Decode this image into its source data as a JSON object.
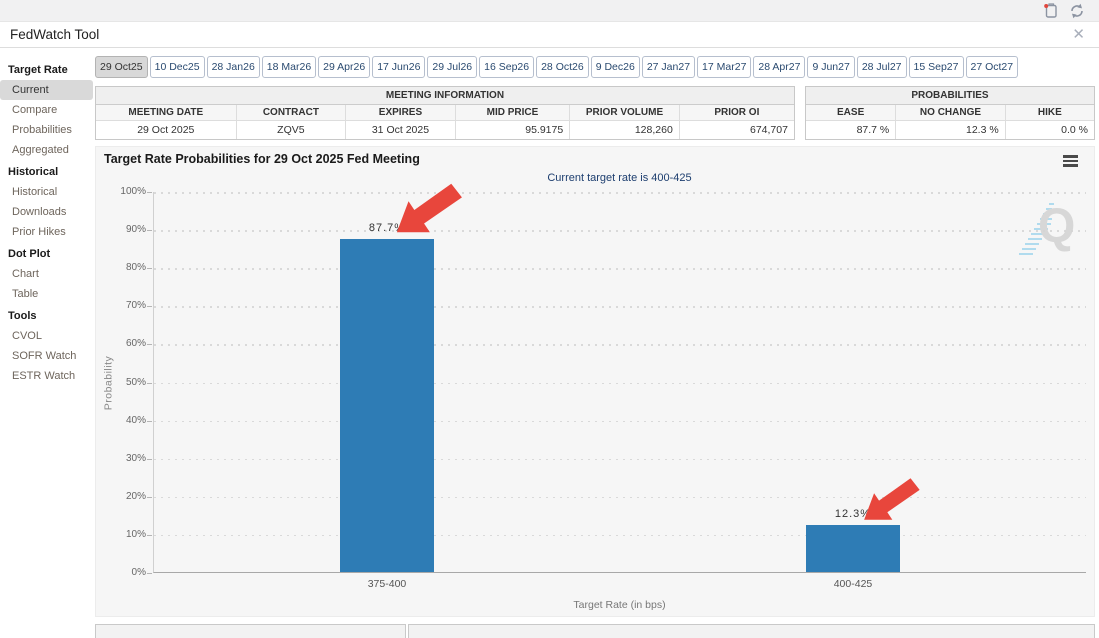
{
  "window": {
    "title": "FedWatch Tool"
  },
  "toolbar": {
    "icons": [
      "export-icon",
      "refresh-icon"
    ]
  },
  "tabs": {
    "selected": "29 Oct25",
    "items": [
      "29 Oct25",
      "10 Dec25",
      "28 Jan26",
      "18 Mar26",
      "29 Apr26",
      "17 Jun26",
      "29 Jul26",
      "16 Sep26",
      "28 Oct26",
      "9 Dec26",
      "27 Jan27",
      "17 Mar27",
      "28 Apr27",
      "9 Jun27",
      "28 Jul27",
      "15 Sep27",
      "27 Oct27"
    ]
  },
  "sidebar": {
    "selected": "Current",
    "groups": [
      {
        "title": "Target Rate",
        "items": [
          "Current",
          "Compare",
          "Probabilities",
          "Aggregated"
        ]
      },
      {
        "title": "Historical",
        "items": [
          "Historical",
          "Downloads",
          "Prior Hikes"
        ]
      },
      {
        "title": "Dot Plot",
        "items": [
          "Chart",
          "Table"
        ]
      },
      {
        "title": "Tools",
        "items": [
          "CVOL",
          "SOFR Watch",
          "ESTR Watch"
        ]
      }
    ]
  },
  "meeting_information": {
    "title": "MEETING INFORMATION",
    "columns": [
      "MEETING DATE",
      "CONTRACT",
      "EXPIRES",
      "MID PRICE",
      "PRIOR VOLUME",
      "PRIOR OI"
    ],
    "values": [
      "29 Oct 2025",
      "ZQV5",
      "31 Oct 2025",
      "95.9175",
      "128,260",
      "674,707"
    ]
  },
  "probabilities": {
    "title": "PROBABILITIES",
    "columns": [
      "EASE",
      "NO CHANGE",
      "HIKE"
    ],
    "values": [
      "87.7 %",
      "12.3 %",
      "0.0 %"
    ]
  },
  "chart_data": {
    "type": "bar",
    "title": "Target Rate Probabilities for 29 Oct 2025 Fed Meeting",
    "subtitle": "Current target rate is 400-425",
    "categories": [
      "375-400",
      "400-425"
    ],
    "values": [
      87.7,
      12.3
    ],
    "value_labels": [
      "87.7%",
      "12.3%"
    ],
    "xlabel": "Target Rate (in bps)",
    "ylabel": "Probability",
    "ylim": [
      0,
      100
    ],
    "ytick_step": 10,
    "ytick_suffix": "%",
    "grid": "horizontal-dotted",
    "legend": "none",
    "bar_color": "#2e7cb5",
    "annotations": [
      {
        "type": "arrow",
        "target": "375-400",
        "color": "#e8463c"
      },
      {
        "type": "arrow",
        "target": "400-425",
        "color": "#e8463c"
      }
    ],
    "watermark": "Q"
  }
}
